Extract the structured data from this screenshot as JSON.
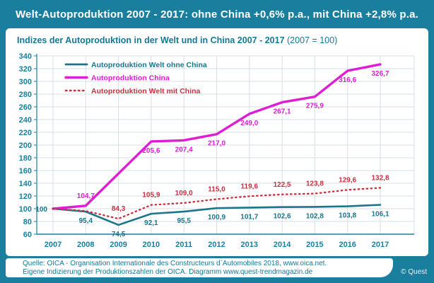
{
  "title": "Welt-Autoproduktion 2007 - 2017: ohne China +0,6% p.a., mit China +2,8% p.a.",
  "subtitle": {
    "main": "Indizes der Autoproduktion in der Welt und in China 2007 - 2017",
    "suffix": " (2007 = 100)"
  },
  "footer": {
    "line1": "Quelle: OICA - Organisation Internationale des Constructeurs d`Automobiles 2018, www.oica.net.",
    "line2": "Eigene Indizierung der Produktionszahlen der OICA. Diagramm  www.quest-trendmagazin.de",
    "copyright": "© Quest"
  },
  "colors": {
    "brand_teal": "#1a7f9e",
    "axis_text": "#1a7f9e",
    "grid": "#d9dfe4",
    "series_world_without_china": "#1b768c",
    "series_china": "#dd1ed3",
    "series_world_with_china": "#c93040"
  },
  "chart_data": {
    "type": "line",
    "x": [
      2007,
      2008,
      2009,
      2010,
      2011,
      2012,
      2013,
      2014,
      2015,
      2016,
      2017
    ],
    "ylim": [
      60,
      340
    ],
    "ytick_step": 20,
    "grid": true,
    "legend_position": "top-left-inside",
    "xlabel": "",
    "ylabel": "",
    "series": [
      {
        "name": "Autoproduktion Welt ohne China",
        "color": "#1b768c",
        "style": "solid",
        "label_side": "below",
        "values": [
          100,
          95.4,
          74.5,
          92.1,
          95.5,
          100.9,
          101.7,
          102.6,
          102.8,
          103.8,
          106.1
        ],
        "labels": [
          "100",
          "95,4",
          "74,5",
          "92,1",
          "95,5",
          "100,9",
          "101,7",
          "102,6",
          "102,8",
          "103,8",
          "106,1"
        ],
        "label_overrides": {
          "0": "left"
        }
      },
      {
        "name": "Autoproduktion China",
        "color": "#dd1ed3",
        "style": "solid",
        "label_side": "below",
        "values": [
          100,
          104.7,
          155.2,
          205.6,
          207.4,
          217.0,
          249.0,
          267.1,
          275.9,
          316.6,
          326.7
        ],
        "labels": [
          null,
          "104,7",
          null,
          "205,6",
          "207,4",
          "217,0",
          "249,0",
          "267,1",
          "275,9",
          "316,6",
          "326,7"
        ],
        "label_overrides": {
          "1": "above"
        }
      },
      {
        "name": "Autoproduktion Welt mit China",
        "color": "#c93040",
        "style": "dotted",
        "label_side": "above",
        "values": [
          100,
          96.5,
          84.3,
          105.9,
          109.0,
          115.0,
          119.6,
          122.5,
          123.8,
          129.6,
          132.8
        ],
        "labels": [
          null,
          null,
          "84,3",
          "105,9",
          "109,0",
          "115,0",
          "119,6",
          "122,5",
          "123,8",
          "129,6",
          "132,8"
        ],
        "label_overrides": {}
      }
    ]
  }
}
